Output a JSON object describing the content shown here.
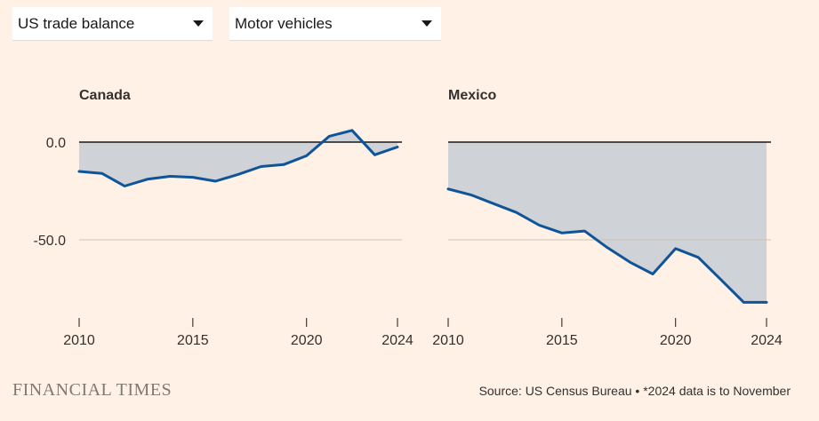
{
  "dropdowns": {
    "metric": "US trade balance",
    "category": "Motor vehicles"
  },
  "footer": {
    "brand": "FINANCIAL TIMES",
    "source": "Source: US Census Bureau • *2024 data is to November"
  },
  "colors": {
    "background": "#fff1e5",
    "line": "#0f5499",
    "area": "#cfd2d7",
    "zero_line": "#1a1817",
    "grid": "#ccc1b7"
  },
  "chart_data": [
    {
      "type": "area",
      "title": "Canada",
      "x": [
        2010,
        2011,
        2012,
        2013,
        2014,
        2015,
        2016,
        2017,
        2018,
        2019,
        2020,
        2021,
        2022,
        2023,
        2024
      ],
      "y": [
        -15,
        -16,
        -22.5,
        -19,
        -17.5,
        -18,
        -20,
        -16.5,
        -12.5,
        -11.5,
        -7,
        3,
        6,
        -6.5,
        -2.5
      ],
      "ylim": [
        -87,
        3
      ],
      "y_ticks": [
        0,
        -50
      ],
      "y_tick_labels": [
        "0.0",
        "-50.0"
      ],
      "x_ticks": [
        2010,
        2015,
        2020,
        2024
      ],
      "x_tick_labels": [
        "2010",
        "2015",
        "2020",
        "2024"
      ],
      "xlabel": "",
      "ylabel": ""
    },
    {
      "type": "area",
      "title": "Mexico",
      "x": [
        2010,
        2011,
        2012,
        2013,
        2014,
        2015,
        2016,
        2017,
        2018,
        2019,
        2020,
        2021,
        2022,
        2023,
        2024
      ],
      "y": [
        -24,
        -27,
        -31.5,
        -36,
        -42.5,
        -46.5,
        -45.5,
        -54,
        -61.5,
        -67.5,
        -54.5,
        -59,
        -70.5,
        -82,
        -82
      ],
      "ylim": [
        -87,
        3
      ],
      "y_ticks": [
        0,
        -50
      ],
      "y_tick_labels": [],
      "x_ticks": [
        2010,
        2015,
        2020,
        2024
      ],
      "x_tick_labels": [
        "2010",
        "2015",
        "2020",
        "2024"
      ],
      "xlabel": "",
      "ylabel": ""
    }
  ]
}
